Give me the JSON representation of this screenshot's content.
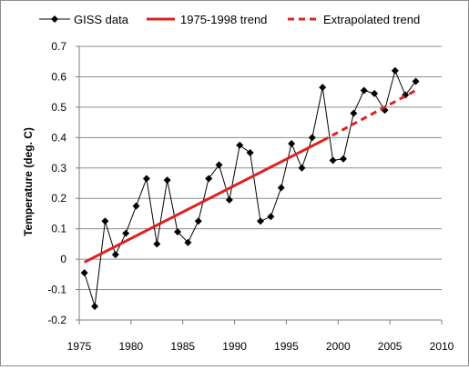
{
  "chart_data": {
    "type": "line",
    "ylabel": "Temperature (deg. C)",
    "xlim": [
      1975,
      2010
    ],
    "ylim": [
      -0.2,
      0.7
    ],
    "x_ticks": [
      1975,
      1980,
      1985,
      1990,
      1995,
      2000,
      2005,
      2010
    ],
    "y_ticks": [
      -0.2,
      -0.1,
      0,
      0.1,
      0.2,
      0.3,
      0.4,
      0.5,
      0.6,
      0.7
    ],
    "grid": "horizontal",
    "legend_position": "top",
    "series": [
      {
        "name": "GISS data",
        "style": "line-with-diamond-markers",
        "color": "#000000",
        "x": [
          1975.5,
          1976.5,
          1977.5,
          1978.5,
          1979.5,
          1980.5,
          1981.5,
          1982.5,
          1983.5,
          1984.5,
          1985.5,
          1986.5,
          1987.5,
          1988.5,
          1989.5,
          1990.5,
          1991.5,
          1992.5,
          1993.5,
          1994.5,
          1995.5,
          1996.5,
          1997.5,
          1998.5,
          1999.5,
          2000.5,
          2001.5,
          2002.5,
          2003.5,
          2004.5,
          2005.5,
          2006.5,
          2007.5
        ],
        "y": [
          -0.045,
          -0.155,
          0.125,
          0.015,
          0.085,
          0.175,
          0.265,
          0.05,
          0.26,
          0.09,
          0.055,
          0.125,
          0.265,
          0.31,
          0.195,
          0.375,
          0.35,
          0.125,
          0.14,
          0.235,
          0.38,
          0.3,
          0.4,
          0.565,
          0.325,
          0.33,
          0.48,
          0.555,
          0.545,
          0.49,
          0.62,
          0.54,
          0.585
        ]
      },
      {
        "name": "1975-1998 trend",
        "style": "solid",
        "color": "#e02020",
        "x": [
          1975.5,
          1998.5
        ],
        "y": [
          -0.01,
          0.39
        ]
      },
      {
        "name": "Extrapolated trend",
        "style": "dashed",
        "color": "#e02020",
        "x": [
          1998.5,
          2007.5
        ],
        "y": [
          0.39,
          0.555
        ]
      }
    ]
  }
}
